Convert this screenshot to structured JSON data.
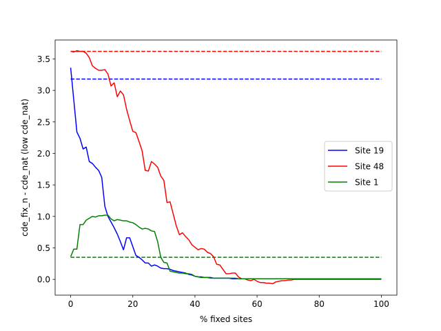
{
  "chart_data": {
    "type": "line",
    "title": "",
    "xlabel": "% fixed sites",
    "ylabel": "cde_fix_n - cde_nat (low cde_nat)",
    "xlim": [
      -5,
      105
    ],
    "ylim": [
      -0.25,
      3.8
    ],
    "xticks": [
      0,
      20,
      40,
      60,
      80,
      100
    ],
    "yticks": [
      0.0,
      0.5,
      1.0,
      1.5,
      2.0,
      2.5,
      3.0,
      3.5
    ],
    "grid": false,
    "legend_position": "center-right",
    "series": [
      {
        "name": "Site 19",
        "color": "#0000ff",
        "x": [
          0,
          1,
          2,
          3,
          4,
          5,
          6,
          7,
          8,
          9,
          10,
          11,
          12,
          13,
          14,
          15,
          16,
          17,
          18,
          19,
          20,
          21,
          22,
          23,
          24,
          25,
          26,
          27,
          28,
          29,
          30,
          31,
          32,
          33,
          34,
          35,
          36,
          37,
          38,
          39,
          40,
          41,
          42,
          43,
          44,
          45,
          46,
          47,
          48,
          49,
          50,
          51,
          52,
          53,
          54,
          55,
          56,
          57,
          58,
          59,
          60,
          61,
          62,
          63,
          64,
          65,
          66,
          67,
          68,
          69,
          70,
          71,
          72,
          73,
          74,
          75,
          76,
          77,
          78,
          79,
          80,
          81,
          82,
          83,
          84,
          85,
          86,
          87,
          88,
          89,
          90,
          91,
          92,
          93,
          94,
          95,
          96,
          97,
          98,
          99,
          100
        ],
        "y": [
          3.36,
          2.85,
          2.34,
          2.24,
          2.07,
          2.1,
          1.87,
          1.84,
          1.78,
          1.73,
          1.62,
          1.16,
          1.0,
          0.91,
          0.82,
          0.72,
          0.6,
          0.47,
          0.66,
          0.66,
          0.52,
          0.38,
          0.35,
          0.31,
          0.26,
          0.26,
          0.21,
          0.23,
          0.21,
          0.18,
          0.17,
          0.17,
          0.16,
          0.14,
          0.13,
          0.12,
          0.11,
          0.1,
          0.08,
          0.07,
          0.05,
          0.04,
          0.04,
          0.03,
          0.03,
          0.03,
          0.02,
          0.02,
          0.02,
          0.02,
          0.02,
          0.02,
          0.01,
          0.01,
          0.01,
          0.01,
          0.01,
          0.01,
          0.01,
          0.01,
          0.01,
          0.01,
          0.01,
          0.01,
          0.01,
          0.01,
          0.01,
          0.01,
          0.01,
          0.01,
          0.01,
          0.01,
          0.01,
          0.01,
          0.01,
          0.01,
          0.01,
          0.01,
          0.01,
          0.01,
          0.01,
          0.01,
          0.01,
          0.01,
          0.01,
          0.01,
          0.01,
          0.01,
          0.01,
          0.01,
          0.01,
          0.01,
          0.01,
          0.01,
          0.01,
          0.01,
          0.01,
          0.01,
          0.01,
          0.01,
          0.01
        ],
        "baseline": 3.18
      },
      {
        "name": "Site 48",
        "color": "#ff0000",
        "x": [
          0,
          1,
          2,
          3,
          4,
          5,
          6,
          7,
          8,
          9,
          10,
          11,
          12,
          13,
          14,
          15,
          16,
          17,
          18,
          19,
          20,
          21,
          22,
          23,
          24,
          25,
          26,
          27,
          28,
          29,
          30,
          31,
          32,
          33,
          34,
          35,
          36,
          37,
          38,
          39,
          40,
          41,
          42,
          43,
          44,
          45,
          46,
          47,
          48,
          49,
          50,
          51,
          52,
          53,
          54,
          55,
          56,
          57,
          58,
          59,
          60,
          61,
          62,
          63,
          64,
          65,
          66,
          67,
          68,
          69,
          70,
          71,
          72,
          73,
          74,
          75,
          76,
          77,
          78,
          79,
          80,
          81,
          82,
          83,
          84,
          85,
          86,
          87,
          88,
          89,
          90,
          91,
          92,
          93,
          94,
          95,
          96,
          97,
          98,
          99,
          100
        ],
        "y": [
          3.62,
          3.61,
          3.63,
          3.62,
          3.62,
          3.59,
          3.52,
          3.39,
          3.35,
          3.32,
          3.32,
          3.33,
          3.26,
          3.07,
          3.12,
          2.9,
          2.99,
          2.93,
          2.7,
          2.52,
          2.35,
          2.33,
          2.19,
          2.04,
          1.73,
          1.72,
          1.87,
          1.83,
          1.78,
          1.64,
          1.57,
          1.22,
          1.23,
          1.04,
          0.85,
          0.71,
          0.74,
          0.68,
          0.63,
          0.55,
          0.51,
          0.47,
          0.49,
          0.48,
          0.43,
          0.41,
          0.36,
          0.24,
          0.23,
          0.16,
          0.09,
          0.09,
          0.1,
          0.1,
          0.04,
          0.01,
          0.01,
          -0.01,
          -0.02,
          0.0,
          -0.03,
          -0.05,
          -0.05,
          -0.06,
          -0.06,
          -0.07,
          -0.04,
          -0.03,
          -0.02,
          -0.02,
          -0.01,
          -0.01,
          0.0,
          0.0,
          0.0,
          0.0,
          0.0,
          0.0,
          0.0,
          0.0,
          0.0,
          0.0,
          0.0,
          0.0,
          0.0,
          0.0,
          0.0,
          0.0,
          0.0,
          0.0,
          0.0,
          0.0,
          0.0,
          0.0,
          0.0,
          0.0,
          0.0,
          0.0,
          0.0,
          0.0,
          0.0
        ],
        "baseline": 3.62
      },
      {
        "name": "Site 1",
        "color": "#008000",
        "x": [
          0,
          1,
          2,
          3,
          4,
          5,
          6,
          7,
          8,
          9,
          10,
          11,
          12,
          13,
          14,
          15,
          16,
          17,
          18,
          19,
          20,
          21,
          22,
          23,
          24,
          25,
          26,
          27,
          28,
          29,
          30,
          31,
          32,
          33,
          34,
          35,
          36,
          37,
          38,
          39,
          40,
          41,
          42,
          43,
          44,
          45,
          46,
          47,
          48,
          49,
          50,
          51,
          52,
          53,
          54,
          55,
          56,
          57,
          58,
          59,
          60,
          61,
          62,
          63,
          64,
          65,
          66,
          67,
          68,
          69,
          70,
          71,
          72,
          73,
          74,
          75,
          76,
          77,
          78,
          79,
          80,
          81,
          82,
          83,
          84,
          85,
          86,
          87,
          88,
          89,
          90,
          91,
          92,
          93,
          94,
          95,
          96,
          97,
          98,
          99,
          100
        ],
        "y": [
          0.36,
          0.48,
          0.48,
          0.87,
          0.87,
          0.94,
          0.97,
          1.0,
          0.99,
          1.01,
          1.01,
          1.02,
          1.02,
          0.96,
          0.93,
          0.95,
          0.94,
          0.93,
          0.93,
          0.91,
          0.9,
          0.87,
          0.83,
          0.8,
          0.81,
          0.8,
          0.77,
          0.76,
          0.6,
          0.35,
          0.27,
          0.26,
          0.13,
          0.12,
          0.11,
          0.1,
          0.1,
          0.09,
          0.09,
          0.08,
          0.05,
          0.04,
          0.03,
          0.03,
          0.03,
          0.02,
          0.02,
          0.02,
          0.02,
          0.02,
          0.02,
          0.02,
          0.02,
          0.02,
          0.01,
          0.01,
          0.01,
          0.01,
          0.01,
          0.01,
          0.01,
          0.01,
          0.01,
          0.01,
          0.01,
          0.01,
          0.01,
          0.01,
          0.01,
          0.01,
          0.01,
          0.01,
          0.01,
          0.01,
          0.01,
          0.01,
          0.01,
          0.01,
          0.01,
          0.01,
          0.01,
          0.01,
          0.01,
          0.01,
          0.01,
          0.01,
          0.01,
          0.01,
          0.01,
          0.01,
          0.01,
          0.01,
          0.01,
          0.01,
          0.01,
          0.01,
          0.01,
          0.01,
          0.01,
          0.01,
          0.01
        ],
        "baseline": 0.35
      }
    ]
  }
}
